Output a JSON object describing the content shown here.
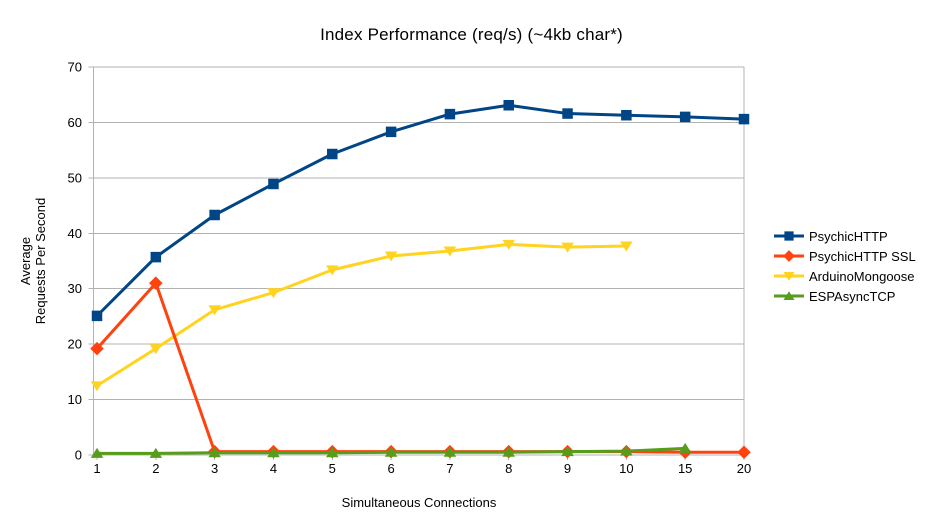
{
  "chart_data": {
    "type": "line",
    "title": "Index Performance (req/s) (~4kb char*)",
    "xlabel": "Simultaneous Connections",
    "ylabel_lines": [
      "Average",
      "Requests Per Second"
    ],
    "categories": [
      "1",
      "2",
      "3",
      "4",
      "5",
      "6",
      "7",
      "8",
      "9",
      "10",
      "15",
      "20"
    ],
    "ylim": [
      0,
      70
    ],
    "ytick_step": 10,
    "grid": true,
    "legend_position": "right",
    "colors": {
      "grid": "#b3b3b3",
      "axis": "#b3b3b3",
      "text": "#000000",
      "background": "#ffffff"
    },
    "series": [
      {
        "name": "PsychicHTTP",
        "color": "#004586",
        "marker": "square",
        "values": [
          25.1,
          35.7,
          43.3,
          48.9,
          54.3,
          58.3,
          61.5,
          63.1,
          61.6,
          61.3,
          61.0,
          60.6
        ]
      },
      {
        "name": "PsychicHTTP SSL",
        "color": "#FF420E",
        "marker": "diamond",
        "values": [
          19.2,
          31.0,
          0.6,
          0.6,
          0.6,
          0.6,
          0.6,
          0.6,
          0.6,
          0.6,
          0.5,
          0.5
        ]
      },
      {
        "name": "ArduinoMongoose",
        "color": "#FFD320",
        "marker": "triangle-down",
        "values": [
          12.5,
          19.2,
          26.2,
          29.3,
          33.4,
          35.9,
          36.8,
          38.0,
          37.5,
          37.7
        ]
      },
      {
        "name": "ESPAsyncTCP",
        "color": "#579D1C",
        "marker": "triangle-up",
        "values": [
          0.3,
          0.3,
          0.4,
          0.4,
          0.4,
          0.5,
          0.5,
          0.5,
          0.6,
          0.7,
          1.2
        ]
      }
    ]
  }
}
